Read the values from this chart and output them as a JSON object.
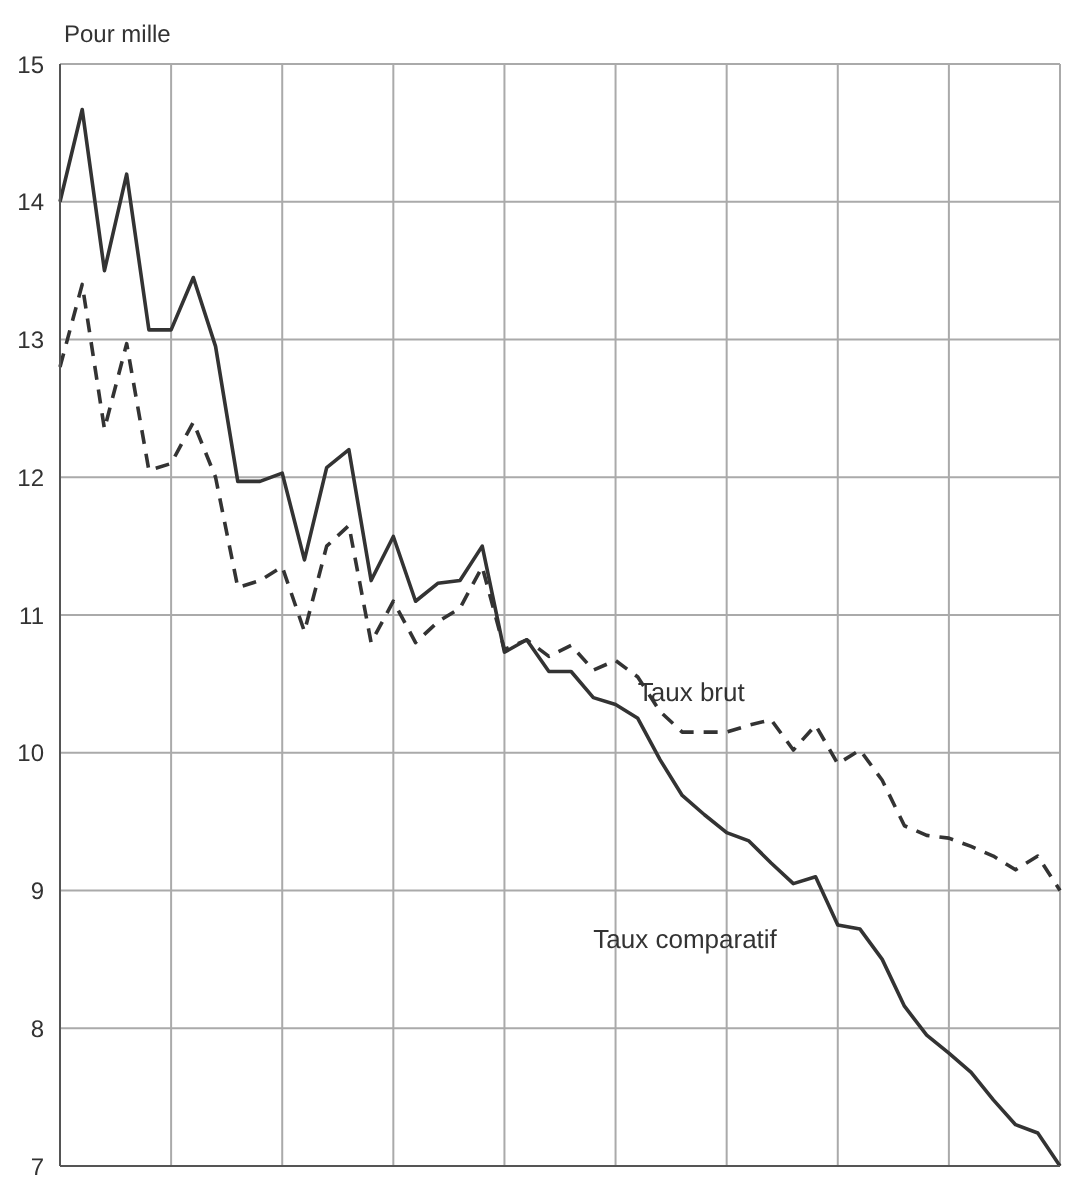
{
  "chart_data": {
    "type": "line",
    "ylabel": "Pour mille",
    "categories": [
      null,
      null,
      null,
      null,
      null,
      null,
      null,
      null,
      null,
      null,
      null,
      null,
      null,
      null,
      null,
      null,
      null,
      null,
      null,
      null,
      null,
      null,
      null,
      null,
      null,
      null,
      null,
      null,
      null,
      null,
      null,
      null,
      null,
      null,
      null,
      null,
      null,
      null,
      null,
      null,
      null,
      null,
      null,
      null,
      null,
      null
    ],
    "series": [
      {
        "name": "Taux comparatif",
        "color": "#333333",
        "line_style": "solid",
        "values": [
          14.0,
          14.67,
          13.5,
          14.2,
          13.07,
          13.07,
          13.45,
          12.95,
          11.97,
          11.97,
          12.03,
          11.4,
          12.07,
          12.2,
          11.25,
          11.57,
          11.1,
          11.23,
          11.25,
          11.5,
          10.73,
          10.82,
          10.59,
          10.59,
          10.4,
          10.35,
          10.25,
          9.95,
          9.69,
          9.55,
          9.42,
          9.36,
          9.2,
          9.05,
          9.1,
          8.75,
          8.72,
          8.5,
          8.16,
          7.95,
          7.82,
          7.68,
          7.48,
          7.3,
          7.24,
          7.0
        ]
      },
      {
        "name": "Taux brut",
        "color": "#333333",
        "line_style": "dashed",
        "values": [
          12.8,
          13.4,
          12.35,
          12.97,
          12.05,
          12.1,
          12.4,
          12.0,
          11.2,
          11.25,
          11.35,
          10.88,
          11.5,
          11.65,
          10.8,
          11.1,
          10.8,
          10.95,
          11.05,
          11.35,
          10.75,
          10.82,
          10.7,
          10.78,
          10.6,
          10.67,
          10.55,
          10.3,
          10.15,
          10.15,
          10.15,
          10.2,
          10.24,
          10.02,
          10.2,
          9.92,
          10.02,
          9.8,
          9.47,
          9.4,
          9.38,
          9.32,
          9.25,
          9.15,
          9.25,
          9.0
        ]
      }
    ],
    "ylim": [
      7,
      15
    ],
    "yticks": [
      7,
      8,
      9,
      10,
      11,
      12,
      13,
      14,
      15
    ],
    "grid": true,
    "marker": "none"
  }
}
